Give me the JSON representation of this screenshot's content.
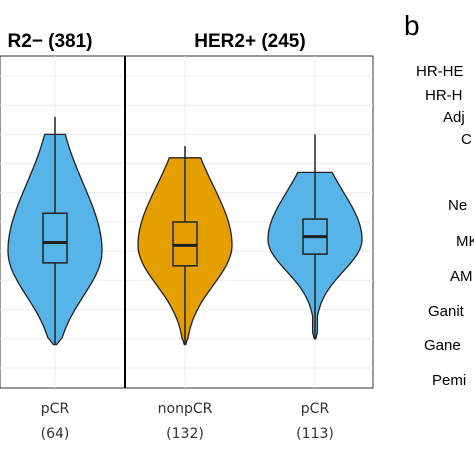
{
  "panel_letter": "b",
  "panel_b_row_labels": [
    "HR-HE",
    "HR-H",
    "Adj",
    "C",
    "Ne",
    "MK",
    "AM",
    "Ganit",
    "Gane",
    "Pemi"
  ],
  "chart_data": {
    "type": "violin",
    "facets": [
      {
        "title": "R2− (381)",
        "groups": [
          {
            "name": "pCR",
            "n_label": "(64)",
            "color": "#56B4E9",
            "min": 8,
            "q1": 36,
            "median": 43,
            "q3": 53,
            "max": 86,
            "density_top": 80,
            "density_peak_y": 40
          }
        ]
      },
      {
        "title": "HER2+ (245)",
        "groups": [
          {
            "name": "nonpCR",
            "n_label": "(132)",
            "color": "#E69F00",
            "min": 8,
            "q1": 35,
            "median": 42,
            "q3": 50,
            "max": 76,
            "density_top": 72,
            "density_peak_y": 42
          },
          {
            "name": "pCR",
            "n_label": "(113)",
            "color": "#56B4E9",
            "min": 10,
            "q1": 39,
            "median": 45,
            "q3": 51,
            "max": 80,
            "density_top": 67,
            "density_peak_y": 44
          }
        ]
      }
    ],
    "ylim": [
      0,
      100
    ],
    "grid": true
  }
}
